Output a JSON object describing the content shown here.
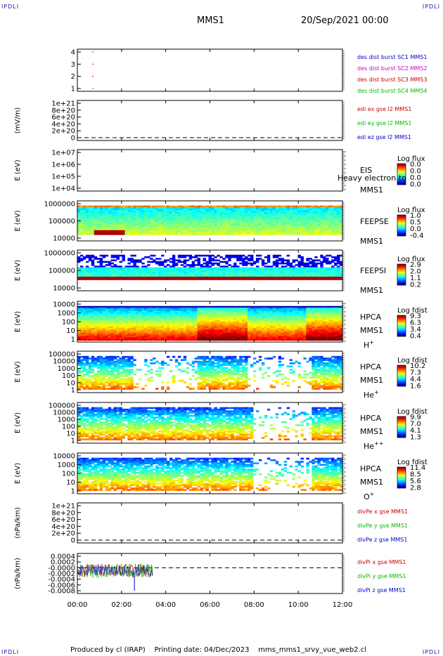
{
  "corner_label": "IPDLI",
  "title_left": "MMS1",
  "title_right": "20/Sep/2021 00:00",
  "footer": "Produced by cl (IRAP)    Printing date: 04/Dec/2023    mms_mms1_srvy_vue_web2.cl",
  "x_ticks": [
    "00:00",
    "02:00",
    "04:00",
    "06:00",
    "08:00",
    "10:00",
    "12:00"
  ],
  "colors": {
    "blue": "#0000cc",
    "magenta": "#cc00cc",
    "red": "#cc0000",
    "green": "#00bb00"
  },
  "chart_data": [
    {
      "type": "scatter",
      "id": "panel1",
      "ylabel": "",
      "yticks": [
        "4",
        "3",
        "2",
        "1"
      ],
      "legend": [
        {
          "text": "des dist burst SC1 MMS1",
          "color": "#0000cc"
        },
        {
          "text": "des dist burst SC2 MMS2",
          "color": "#cc00cc"
        },
        {
          "text": "des dist burst SC3 MMS3",
          "color": "#cc0000"
        },
        {
          "text": "des dist burst SC4 MMS4",
          "color": "#00bb00"
        }
      ],
      "points": [
        {
          "x": "00:42",
          "y": 4
        },
        {
          "x": "00:42",
          "y": 3
        },
        {
          "x": "00:42",
          "y": 2
        },
        {
          "x": "00:42",
          "y": 1
        }
      ]
    },
    {
      "type": "line",
      "id": "panel2",
      "ylabel": "(mV/m)",
      "yticks": [
        "1e+21",
        "8e+20",
        "6e+20",
        "4e+20",
        "2e+20",
        "0"
      ],
      "legend": [
        {
          "text": "edi ex gse l2 MMS1",
          "color": "#cc0000"
        },
        {
          "text": "edi ey gse l2 MMS1",
          "color": "#00bb00"
        },
        {
          "text": "edi ez gse l2 MMS1",
          "color": "#0000cc"
        }
      ]
    },
    {
      "type": "heatmap",
      "id": "eis",
      "ylabel": "E (eV)",
      "yticks": [
        "1e+07",
        "1e+06",
        "1e+05",
        "1e+04"
      ],
      "instrument": [
        "EIS",
        "MMS1"
      ],
      "overlay_text": "Heavy electron to",
      "colorbar": {
        "title": "Log flux",
        "values": [
          "0.0",
          "0.0",
          "0.0",
          "0.0"
        ]
      }
    },
    {
      "type": "heatmap",
      "id": "feeps_e",
      "ylabel": "E (eV)",
      "yticks": [
        "1000000",
        "100000",
        "10000"
      ],
      "instrument": [
        "FEEPSE",
        "MMS1"
      ],
      "colorbar": {
        "title": "Log flux",
        "values": [
          "1.0",
          "0.5",
          "0.0",
          "-0.4"
        ]
      }
    },
    {
      "type": "heatmap",
      "id": "feeps_i",
      "ylabel": "E (eV)",
      "yticks": [
        "1000000",
        "100000",
        "10000"
      ],
      "instrument": [
        "FEEPSI",
        "MMS1"
      ],
      "colorbar": {
        "title": "Log flux",
        "values": [
          "2.9",
          "2.0",
          "1.1",
          "0.2"
        ]
      }
    },
    {
      "type": "heatmap",
      "id": "hpca_h",
      "ylabel": "E (eV)",
      "yticks": [
        "10000",
        "1000",
        "100",
        "10",
        "1"
      ],
      "instrument": [
        "HPCA",
        "MMS1"
      ],
      "species": "H",
      "species_sup": "+",
      "colorbar": {
        "title": "Log fdist",
        "values": [
          "9.3",
          "6.3",
          "3.4",
          "0.4"
        ]
      }
    },
    {
      "type": "heatmap",
      "id": "hpca_he",
      "ylabel": "E (eV)",
      "yticks": [
        "100000",
        "10000",
        "1000",
        "100",
        "10",
        "1"
      ],
      "instrument": [
        "HPCA",
        "MMS1"
      ],
      "species": "He",
      "species_sup": "+",
      "colorbar": {
        "title": "Log fdist",
        "values": [
          "10.2",
          "7.3",
          "4.4",
          "1.6"
        ]
      }
    },
    {
      "type": "heatmap",
      "id": "hpca_hepp",
      "ylabel": "E (eV)",
      "yticks": [
        "100000",
        "10000",
        "1000",
        "100",
        "10",
        "1"
      ],
      "instrument": [
        "HPCA",
        "MMS1"
      ],
      "species": "He",
      "species_sup": "++",
      "colorbar": {
        "title": "Log fdist",
        "values": [
          "9.9",
          "7.0",
          "4.1",
          "1.3"
        ]
      }
    },
    {
      "type": "heatmap",
      "id": "hpca_o",
      "ylabel": "E (eV)",
      "yticks": [
        "10000",
        "1000",
        "100",
        "10",
        "1"
      ],
      "instrument": [
        "HPCA",
        "MMS1"
      ],
      "species": "O",
      "species_sup": "+",
      "colorbar": {
        "title": "Log fdist",
        "values": [
          "11.4",
          "8.5",
          "5.6",
          "2.8"
        ]
      }
    },
    {
      "type": "line",
      "id": "divpe",
      "ylabel": "(nPa/km)",
      "yticks": [
        "1e+21",
        "8e+20",
        "6e+20",
        "4e+20",
        "2e+20",
        "0"
      ],
      "legend": [
        {
          "text": "divPe x gse MMS1",
          "color": "#cc0000"
        },
        {
          "text": "divPe y gse MMS1",
          "color": "#00bb00"
        },
        {
          "text": "divPe z gse MMS1",
          "color": "#0000cc"
        }
      ]
    },
    {
      "type": "line",
      "id": "divpi",
      "ylabel": "(nPa/km)",
      "yticks": [
        "0.0004",
        "0.0002",
        "-0.0000",
        "-0.0002",
        "-0.0004",
        "-0.0006",
        "-0.0008"
      ],
      "legend": [
        {
          "text": "divPi x gse MMS1",
          "color": "#cc0000"
        },
        {
          "text": "divPi y gse MMS1",
          "color": "#00bb00"
        },
        {
          "text": "divPi z gse MMS1",
          "color": "#0000cc"
        }
      ],
      "data_span": {
        "x_start": "00:00",
        "x_end": "03:25",
        "y_center": -0.0001,
        "y_noise": 0.00025
      }
    }
  ]
}
